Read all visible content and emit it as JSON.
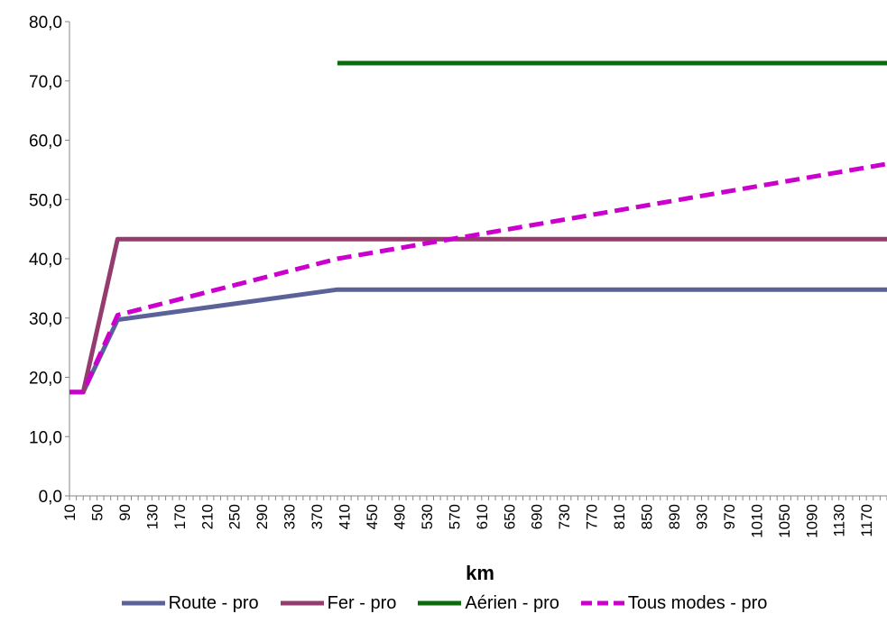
{
  "chart_data": {
    "type": "line",
    "xlabel": "km",
    "ylabel": "",
    "title": "",
    "ylim": [
      0,
      80
    ],
    "y_ticks": [
      "0,0",
      "10,0",
      "20,0",
      "30,0",
      "40,0",
      "50,0",
      "60,0",
      "70,0",
      "80,0"
    ],
    "x_tick_labels": [
      "10",
      "50",
      "90",
      "130",
      "170",
      "210",
      "250",
      "290",
      "330",
      "370",
      "410",
      "450",
      "490",
      "530",
      "570",
      "610",
      "650",
      "690",
      "730",
      "770",
      "810",
      "850",
      "890",
      "930",
      "970",
      "1010",
      "1050",
      "1090",
      "1130",
      "1170"
    ],
    "x_range": [
      10,
      1200
    ],
    "grid": false,
    "legend_position": "bottom",
    "series": [
      {
        "name": "Route - pro",
        "color": "#5b6299",
        "style": "solid",
        "points": [
          [
            10,
            17.5
          ],
          [
            30,
            17.5
          ],
          [
            80,
            29.7
          ],
          [
            400,
            34.8
          ],
          [
            1200,
            34.8
          ]
        ]
      },
      {
        "name": "Fer - pro",
        "color": "#953c6e",
        "style": "solid",
        "points": [
          [
            10,
            17.5
          ],
          [
            30,
            17.5
          ],
          [
            80,
            43.3
          ],
          [
            1200,
            43.3
          ]
        ]
      },
      {
        "name": "Aérien - pro",
        "color": "#0a6b0a",
        "style": "solid",
        "points": [
          [
            400,
            73.0
          ],
          [
            1200,
            73.0
          ]
        ]
      },
      {
        "name": "Tous modes - pro",
        "color": "#cc00cc",
        "style": "dashed",
        "points": [
          [
            10,
            17.5
          ],
          [
            30,
            17.5
          ],
          [
            80,
            30.5
          ],
          [
            400,
            40.0
          ],
          [
            1200,
            56.0
          ]
        ]
      }
    ]
  }
}
